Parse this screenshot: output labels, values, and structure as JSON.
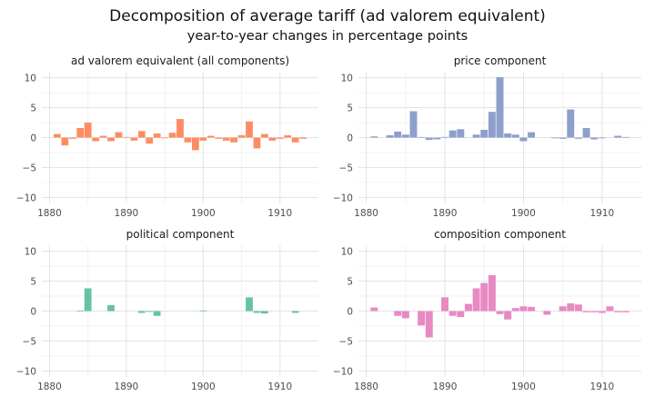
{
  "title": "Decomposition of average tariff (ad valorem equivalent)",
  "subtitle": "year-to-year changes in percentage points",
  "chart_data": [
    {
      "type": "bar",
      "title": "ad valorem equivalent (all components)",
      "color": "#fc8d62",
      "xlim": [
        1879,
        1915
      ],
      "ylim": [
        -11,
        11
      ],
      "xticks": [
        1880,
        1890,
        1900,
        1910
      ],
      "yticks": [
        -10,
        -5,
        0,
        5,
        10
      ],
      "x": [
        1881,
        1882,
        1883,
        1884,
        1885,
        1886,
        1887,
        1888,
        1889,
        1890,
        1891,
        1892,
        1893,
        1894,
        1895,
        1896,
        1897,
        1898,
        1899,
        1900,
        1901,
        1902,
        1903,
        1904,
        1905,
        1906,
        1907,
        1908,
        1909,
        1910,
        1911,
        1912,
        1913
      ],
      "values": [
        0.6,
        -1.3,
        -0.2,
        1.6,
        2.5,
        -0.6,
        0.3,
        -0.6,
        0.9,
        0.1,
        -0.5,
        1.1,
        -1.0,
        0.7,
        -0.1,
        0.8,
        3.1,
        -0.8,
        -2.1,
        -0.5,
        0.3,
        -0.2,
        -0.5,
        -0.8,
        0.4,
        2.7,
        -1.8,
        0.6,
        -0.5,
        -0.2,
        0.4,
        -0.8,
        -0.2
      ]
    },
    {
      "type": "bar",
      "title": "price component",
      "color": "#8da0cb",
      "xlim": [
        1879,
        1915
      ],
      "ylim": [
        -11,
        11
      ],
      "xticks": [
        1880,
        1890,
        1900,
        1910
      ],
      "yticks": [
        -10,
        -5,
        0,
        5,
        10
      ],
      "x": [
        1881,
        1882,
        1883,
        1884,
        1885,
        1886,
        1887,
        1888,
        1889,
        1890,
        1891,
        1892,
        1893,
        1894,
        1895,
        1896,
        1897,
        1898,
        1899,
        1900,
        1901,
        1902,
        1903,
        1904,
        1905,
        1906,
        1907,
        1908,
        1909,
        1910,
        1911,
        1912,
        1913
      ],
      "values": [
        0.2,
        0.0,
        0.4,
        1.0,
        0.5,
        4.4,
        0.1,
        -0.4,
        -0.3,
        0.1,
        1.2,
        1.4,
        0.0,
        0.5,
        1.3,
        4.3,
        10.1,
        0.7,
        0.5,
        -0.6,
        0.9,
        0.0,
        0.0,
        -0.1,
        -0.2,
        4.7,
        -0.2,
        1.6,
        -0.3,
        -0.1,
        0.0,
        0.3,
        0.1
      ]
    },
    {
      "type": "bar",
      "title": "political component",
      "color": "#66c2a5",
      "xlim": [
        1879,
        1915
      ],
      "ylim": [
        -11,
        11
      ],
      "xticks": [
        1880,
        1890,
        1900,
        1910
      ],
      "yticks": [
        -10,
        -5,
        0,
        5,
        10
      ],
      "x": [
        1881,
        1882,
        1883,
        1884,
        1885,
        1886,
        1887,
        1888,
        1889,
        1890,
        1891,
        1892,
        1893,
        1894,
        1895,
        1896,
        1897,
        1898,
        1899,
        1900,
        1901,
        1902,
        1903,
        1904,
        1905,
        1906,
        1907,
        1908,
        1909,
        1910,
        1911,
        1912,
        1913
      ],
      "values": [
        0.0,
        0.0,
        0.0,
        0.1,
        3.8,
        0.0,
        0.0,
        1.0,
        0.0,
        0.0,
        0.0,
        -0.3,
        -0.1,
        -0.8,
        0.0,
        0.0,
        0.0,
        0.0,
        0.0,
        0.1,
        0.0,
        0.0,
        0.0,
        0.0,
        0.0,
        2.3,
        -0.3,
        -0.4,
        0.0,
        0.0,
        0.0,
        -0.3,
        0.0
      ]
    },
    {
      "type": "bar",
      "title": "composition component",
      "color": "#e78ac3",
      "xlim": [
        1879,
        1915
      ],
      "ylim": [
        -11,
        11
      ],
      "xticks": [
        1880,
        1890,
        1900,
        1910
      ],
      "yticks": [
        -10,
        -5,
        0,
        5,
        10
      ],
      "x": [
        1881,
        1882,
        1883,
        1884,
        1885,
        1886,
        1887,
        1888,
        1889,
        1890,
        1891,
        1892,
        1893,
        1894,
        1895,
        1896,
        1897,
        1898,
        1899,
        1900,
        1901,
        1902,
        1903,
        1904,
        1905,
        1906,
        1907,
        1908,
        1909,
        1910,
        1911,
        1912,
        1913
      ],
      "values": [
        0.6,
        0.0,
        0.0,
        -0.8,
        -1.2,
        0.0,
        -2.4,
        -4.4,
        0.0,
        2.3,
        -0.8,
        -1.0,
        1.2,
        3.8,
        4.7,
        6.0,
        -0.5,
        -1.4,
        0.5,
        0.8,
        0.7,
        0.0,
        -0.6,
        0.0,
        0.8,
        1.3,
        1.1,
        -0.2,
        -0.2,
        -0.3,
        0.8,
        -0.2,
        -0.2
      ]
    }
  ]
}
